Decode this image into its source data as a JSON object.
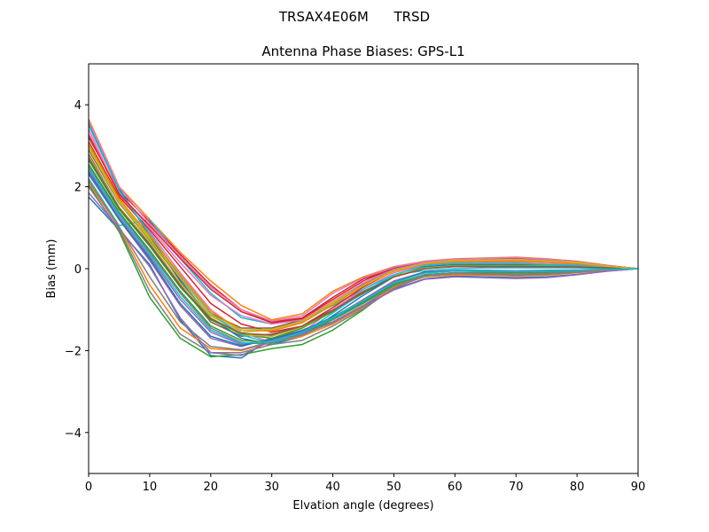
{
  "chart_data": {
    "type": "line",
    "suptitle": "TRSAX4E06M      TRSD",
    "title": "Antenna Phase Biases: GPS-L1",
    "xlabel": "Elvation angle (degrees)",
    "ylabel": "Bias (mm)",
    "xlim": [
      0,
      90
    ],
    "ylim": [
      -5,
      5
    ],
    "xticks": [
      0,
      10,
      20,
      30,
      40,
      50,
      60,
      70,
      80,
      90
    ],
    "xtick_labels": [
      "0",
      "10",
      "20",
      "30",
      "40",
      "50",
      "60",
      "70",
      "80",
      "90"
    ],
    "yticks": [
      -4,
      -2,
      0,
      2,
      4
    ],
    "ytick_labels": [
      "−4",
      "−2",
      "0",
      "2",
      "4"
    ],
    "grid": false,
    "legend": "none",
    "x": [
      0,
      5,
      10,
      15,
      20,
      25,
      30,
      35,
      40,
      45,
      50,
      55,
      60,
      65,
      70,
      75,
      80,
      85,
      90
    ],
    "series_colors": [
      "#1f77b4",
      "#ff7f0e",
      "#2ca02c",
      "#d62728",
      "#9467bd",
      "#8c564b",
      "#e377c2",
      "#7f7f7f",
      "#bcbd22",
      "#17becf"
    ],
    "series": [
      {
        "values": [
          1.75,
          0.95,
          0.1,
          -1.25,
          -2.12,
          -2.18,
          -1.7,
          -1.55,
          -1.3,
          -0.9,
          -0.5,
          -0.25,
          -0.18,
          -0.2,
          -0.22,
          -0.2,
          -0.14,
          -0.06,
          0.0
        ]
      },
      {
        "values": [
          3.65,
          2.0,
          1.2,
          0.4,
          -0.3,
          -0.9,
          -1.25,
          -1.1,
          -0.55,
          -0.2,
          0.05,
          0.18,
          0.24,
          0.26,
          0.28,
          0.24,
          0.18,
          0.08,
          0.0
        ]
      },
      {
        "values": [
          2.05,
          0.9,
          -0.7,
          -1.7,
          -2.15,
          -2.1,
          -1.95,
          -1.85,
          -1.5,
          -1.0,
          -0.45,
          -0.15,
          -0.1,
          -0.12,
          -0.15,
          -0.12,
          -0.08,
          -0.03,
          0.0
        ]
      },
      {
        "values": [
          3.2,
          1.9,
          1.15,
          0.35,
          -0.4,
          -1.0,
          -1.3,
          -1.2,
          -0.7,
          -0.25,
          0.0,
          0.15,
          0.2,
          0.22,
          0.24,
          0.22,
          0.16,
          0.07,
          0.0
        ]
      },
      {
        "values": [
          2.3,
          1.2,
          0.2,
          -0.9,
          -1.7,
          -1.9,
          -1.7,
          -1.5,
          -1.2,
          -0.8,
          -0.35,
          -0.1,
          -0.05,
          -0.05,
          -0.08,
          -0.06,
          -0.04,
          -0.02,
          0.0
        ]
      },
      {
        "values": [
          2.8,
          1.5,
          0.6,
          -0.4,
          -1.3,
          -1.65,
          -1.6,
          -1.4,
          -1.0,
          -0.55,
          -0.2,
          0.0,
          0.05,
          0.05,
          0.04,
          0.04,
          0.03,
          0.01,
          0.0
        ]
      },
      {
        "values": [
          3.4,
          1.8,
          0.9,
          -0.1,
          -1.0,
          -1.55,
          -1.8,
          -1.55,
          -1.0,
          -0.5,
          -0.1,
          0.1,
          0.15,
          0.15,
          0.15,
          0.12,
          0.1,
          0.04,
          0.0
        ]
      },
      {
        "values": [
          2.5,
          1.35,
          0.4,
          -0.6,
          -1.45,
          -1.8,
          -1.85,
          -1.6,
          -1.25,
          -0.85,
          -0.4,
          -0.18,
          -0.12,
          -0.1,
          -0.1,
          -0.1,
          -0.06,
          -0.02,
          0.0
        ]
      },
      {
        "values": [
          3.0,
          1.65,
          0.75,
          -0.2,
          -1.15,
          -1.55,
          -1.5,
          -1.3,
          -0.85,
          -0.4,
          -0.05,
          0.12,
          0.18,
          0.2,
          0.2,
          0.18,
          0.14,
          0.06,
          0.0
        ]
      },
      {
        "values": [
          2.2,
          1.05,
          1.2,
          0.25,
          -0.6,
          -1.2,
          -1.35,
          -1.25,
          -0.9,
          -0.5,
          -0.15,
          -0.05,
          0.0,
          0.02,
          0.02,
          0.02,
          0.02,
          0.01,
          0.0
        ]
      },
      {
        "values": [
          3.55,
          1.95,
          0.8,
          -0.3,
          -1.2,
          -1.7,
          -1.85,
          -1.65,
          -1.15,
          -0.65,
          -0.2,
          0.05,
          0.1,
          0.1,
          0.1,
          0.08,
          0.06,
          0.03,
          0.0
        ]
      },
      {
        "values": [
          2.1,
          1.0,
          -0.4,
          -1.45,
          -1.95,
          -2.0,
          -1.8,
          -1.65,
          -1.35,
          -0.95,
          -0.45,
          -0.2,
          -0.15,
          -0.16,
          -0.18,
          -0.16,
          -0.1,
          -0.04,
          0.0
        ]
      },
      {
        "values": [
          2.65,
          1.45,
          0.55,
          -0.45,
          -1.25,
          -1.6,
          -1.7,
          -1.45,
          -1.05,
          -0.6,
          -0.2,
          0.02,
          0.08,
          0.08,
          0.08,
          0.07,
          0.05,
          0.02,
          0.0
        ]
      },
      {
        "values": [
          3.1,
          1.75,
          0.95,
          0.05,
          -0.85,
          -1.35,
          -1.55,
          -1.4,
          -0.95,
          -0.45,
          -0.05,
          0.12,
          0.18,
          0.18,
          0.18,
          0.16,
          0.12,
          0.05,
          0.0
        ]
      },
      {
        "values": [
          2.4,
          1.25,
          0.3,
          -0.75,
          -1.55,
          -1.85,
          -1.75,
          -1.55,
          -1.2,
          -0.75,
          -0.3,
          -0.08,
          -0.04,
          -0.04,
          -0.05,
          -0.04,
          -0.03,
          -0.01,
          0.0
        ]
      },
      {
        "values": [
          2.9,
          1.6,
          0.7,
          -0.25,
          -1.1,
          -1.45,
          -1.45,
          -1.25,
          -0.8,
          -0.38,
          -0.02,
          0.15,
          0.22,
          0.24,
          0.25,
          0.22,
          0.17,
          0.07,
          0.0
        ]
      },
      {
        "values": [
          3.3,
          1.85,
          1.0,
          0.15,
          -0.65,
          -1.15,
          -1.35,
          -1.25,
          -0.8,
          -0.35,
          0.0,
          0.16,
          0.22,
          0.23,
          0.24,
          0.21,
          0.16,
          0.07,
          0.0
        ]
      },
      {
        "values": [
          2.0,
          0.95,
          -0.55,
          -1.6,
          -2.05,
          -2.05,
          -1.85,
          -1.75,
          -1.4,
          -0.98,
          -0.48,
          -0.18,
          -0.12,
          -0.14,
          -0.16,
          -0.14,
          -0.09,
          -0.03,
          0.0
        ]
      },
      {
        "values": [
          2.75,
          1.5,
          0.65,
          -0.35,
          -1.2,
          -1.62,
          -1.65,
          -1.42,
          -1.02,
          -0.58,
          -0.18,
          0.02,
          0.07,
          0.07,
          0.07,
          0.06,
          0.04,
          0.02,
          0.0
        ]
      },
      {
        "values": [
          3.5,
          1.9,
          0.85,
          -0.2,
          -1.1,
          -1.62,
          -1.82,
          -1.6,
          -1.08,
          -0.58,
          -0.15,
          0.08,
          0.13,
          0.13,
          0.13,
          0.1,
          0.08,
          0.03,
          0.0
        ]
      },
      {
        "values": [
          2.35,
          1.2,
          0.25,
          -0.85,
          -1.65,
          -1.88,
          -1.72,
          -1.52,
          -1.18,
          -0.78,
          -0.33,
          -0.09,
          -0.05,
          -0.05,
          -0.07,
          -0.05,
          -0.04,
          -0.02,
          0.0
        ]
      },
      {
        "values": [
          3.05,
          1.7,
          0.8,
          -0.15,
          -1.05,
          -1.5,
          -1.52,
          -1.32,
          -0.88,
          -0.42,
          -0.06,
          0.12,
          0.17,
          0.18,
          0.18,
          0.16,
          0.12,
          0.05,
          0.0
        ]
      },
      {
        "values": [
          2.55,
          1.38,
          0.45,
          -0.55,
          -1.4,
          -1.75,
          -1.8,
          -1.58,
          -1.22,
          -0.82,
          -0.38,
          -0.15,
          -0.1,
          -0.09,
          -0.09,
          -0.08,
          -0.05,
          -0.02,
          0.0
        ]
      },
      {
        "values": [
          3.25,
          1.82,
          1.05,
          0.25,
          -0.5,
          -1.05,
          -1.32,
          -1.22,
          -0.75,
          -0.3,
          0.02,
          0.17,
          0.23,
          0.25,
          0.26,
          0.23,
          0.17,
          0.07,
          0.0
        ]
      },
      {
        "values": [
          1.85,
          0.98,
          0.05,
          -1.2,
          -2.05,
          -2.12,
          -1.75,
          -1.58,
          -1.32,
          -0.92,
          -0.52,
          -0.26,
          -0.2,
          -0.22,
          -0.24,
          -0.22,
          -0.15,
          -0.06,
          0.0
        ]
      },
      {
        "values": [
          2.7,
          1.48,
          0.58,
          -0.42,
          -1.22,
          -1.58,
          -1.62,
          -1.4,
          -1.02,
          -0.58,
          -0.2,
          0.0,
          0.06,
          0.06,
          0.06,
          0.05,
          0.04,
          0.02,
          0.0
        ]
      },
      {
        "values": [
          3.6,
          1.98,
          1.1,
          0.3,
          -0.45,
          -1.0,
          -1.28,
          -1.15,
          -0.6,
          -0.22,
          0.04,
          0.17,
          0.23,
          0.25,
          0.27,
          0.23,
          0.17,
          0.07,
          0.0
        ]
      },
      {
        "values": [
          2.15,
          1.02,
          -0.2,
          -1.3,
          -1.9,
          -1.98,
          -1.78,
          -1.62,
          -1.3,
          -0.9,
          -0.42,
          -0.16,
          -0.1,
          -0.11,
          -0.13,
          -0.11,
          -0.07,
          -0.03,
          0.0
        ]
      },
      {
        "values": [
          2.95,
          1.62,
          0.72,
          -0.22,
          -1.12,
          -1.5,
          -1.48,
          -1.28,
          -0.82,
          -0.4,
          -0.04,
          0.13,
          0.2,
          0.21,
          0.22,
          0.19,
          0.15,
          0.06,
          0.0
        ]
      },
      {
        "values": [
          2.45,
          1.3,
          0.35,
          -0.68,
          -1.5,
          -1.82,
          -1.78,
          -1.55,
          -1.2,
          -0.78,
          -0.34,
          -0.11,
          -0.06,
          -0.06,
          -0.07,
          -0.06,
          -0.04,
          -0.02,
          0.0
        ]
      }
    ]
  }
}
